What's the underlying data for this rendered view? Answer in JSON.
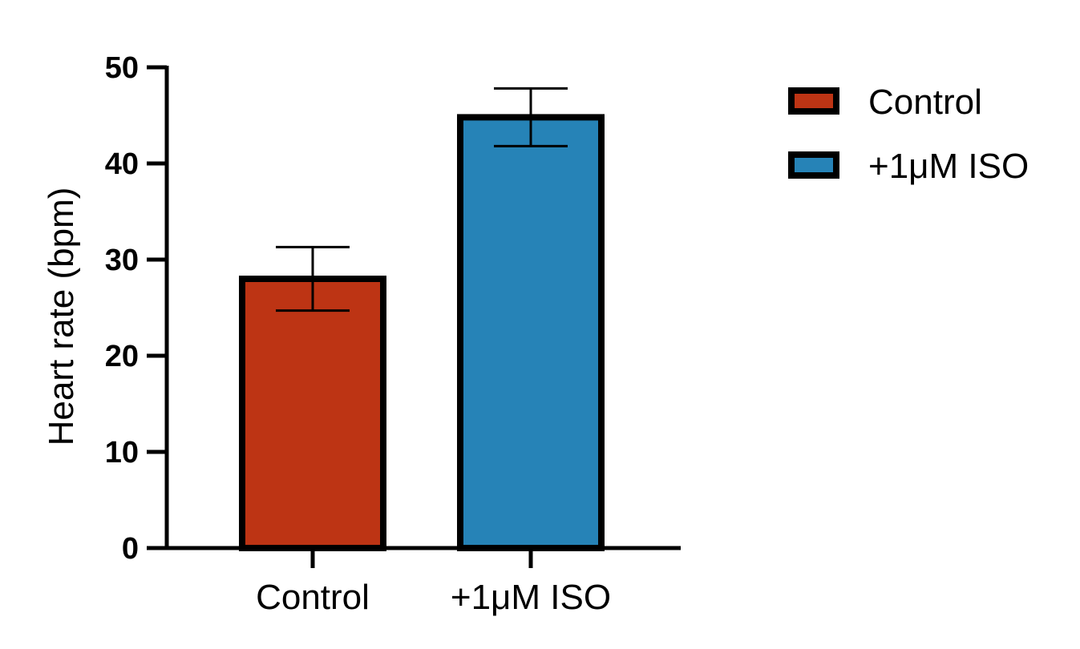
{
  "chart_data": {
    "type": "bar",
    "title": "",
    "xlabel": "",
    "ylabel": "Heart rate (bpm)",
    "ylim": [
      0,
      50
    ],
    "yticks": [
      0,
      10,
      20,
      30,
      40,
      50
    ],
    "categories": [
      "Control",
      "+1μM ISO"
    ],
    "values": [
      28,
      44.8
    ],
    "errors": [
      3.3,
      3.0
    ],
    "colors": [
      "#bd3414",
      "#2683b7"
    ],
    "legend": {
      "placement": "top-right",
      "entries": [
        "Control",
        "+1μM ISO"
      ]
    },
    "grid": false
  }
}
